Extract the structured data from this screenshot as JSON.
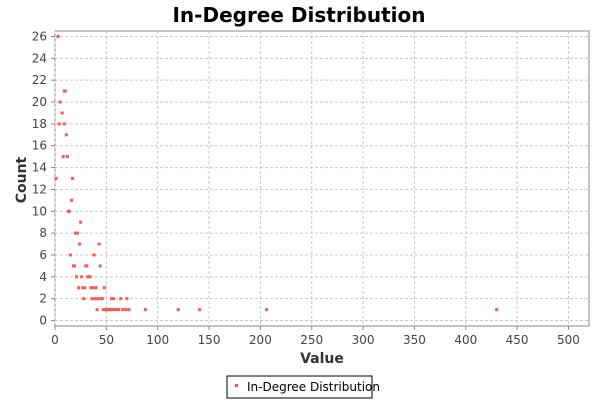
{
  "chart_data": {
    "type": "scatter",
    "title": "In-Degree Distribution",
    "xlabel": "Value",
    "ylabel": "Count",
    "xlim": [
      0,
      520
    ],
    "ylim": [
      -0.5,
      26.5
    ],
    "x_ticks": [
      0,
      50,
      100,
      150,
      200,
      250,
      300,
      350,
      400,
      450,
      500
    ],
    "y_ticks": [
      0,
      2,
      4,
      6,
      8,
      10,
      12,
      14,
      16,
      18,
      20,
      22,
      24,
      26
    ],
    "grid": true,
    "legend_position": "bottom",
    "series": [
      {
        "name": "In-Degree Distribution",
        "color": "#ff5555",
        "points": [
          [
            1,
            13
          ],
          [
            3,
            26
          ],
          [
            4,
            18
          ],
          [
            5,
            20
          ],
          [
            7,
            19
          ],
          [
            8,
            15
          ],
          [
            9,
            18
          ],
          [
            9,
            21
          ],
          [
            10,
            21
          ],
          [
            11,
            17
          ],
          [
            12,
            15
          ],
          [
            13,
            10
          ],
          [
            14,
            10
          ],
          [
            15,
            6
          ],
          [
            16,
            11
          ],
          [
            17,
            13
          ],
          [
            18,
            5
          ],
          [
            19,
            5
          ],
          [
            20,
            8
          ],
          [
            21,
            4
          ],
          [
            22,
            8
          ],
          [
            23,
            3
          ],
          [
            24,
            7
          ],
          [
            25,
            9
          ],
          [
            26,
            4
          ],
          [
            27,
            3
          ],
          [
            28,
            2
          ],
          [
            29,
            3
          ],
          [
            30,
            5
          ],
          [
            31,
            5
          ],
          [
            32,
            4
          ],
          [
            33,
            4
          ],
          [
            34,
            4
          ],
          [
            35,
            3
          ],
          [
            36,
            2
          ],
          [
            37,
            3
          ],
          [
            38,
            6
          ],
          [
            39,
            2
          ],
          [
            40,
            3
          ],
          [
            41,
            1
          ],
          [
            42,
            2
          ],
          [
            43,
            7
          ],
          [
            44,
            5
          ],
          [
            45,
            2
          ],
          [
            46,
            2
          ],
          [
            47,
            1
          ],
          [
            48,
            3
          ],
          [
            49,
            1
          ],
          [
            50,
            1
          ],
          [
            51,
            1
          ],
          [
            52,
            1
          ],
          [
            53,
            1
          ],
          [
            54,
            1
          ],
          [
            55,
            2
          ],
          [
            56,
            1
          ],
          [
            57,
            2
          ],
          [
            58,
            1
          ],
          [
            60,
            1
          ],
          [
            62,
            1
          ],
          [
            64,
            2
          ],
          [
            66,
            1
          ],
          [
            69,
            1
          ],
          [
            70,
            2
          ],
          [
            72,
            1
          ],
          [
            88,
            1
          ],
          [
            120,
            1
          ],
          [
            141,
            1
          ],
          [
            206,
            1
          ],
          [
            430,
            1
          ]
        ]
      }
    ]
  }
}
